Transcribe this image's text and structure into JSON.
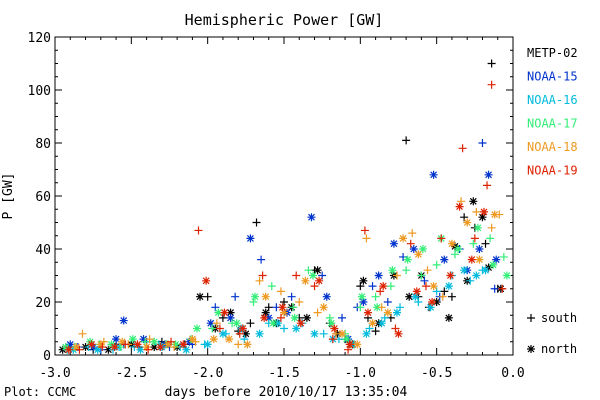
{
  "chart_data": {
    "type": "scatter",
    "title": "Hemispheric Power [GW]",
    "xlabel": "days before 2010/10/17 13:35:04",
    "ylabel": "P [GW]",
    "xlim": [
      -3.0,
      0.0
    ],
    "ylim": [
      0,
      120
    ],
    "x_ticks": [
      "-3.0",
      "-2.5",
      "-2.0",
      "-1.5",
      "-1.0",
      "-0.5",
      "0.0"
    ],
    "y_ticks": [
      "0",
      "20",
      "40",
      "60",
      "80",
      "100",
      "120"
    ],
    "grid": false,
    "legend_position": "right",
    "markers": [
      {
        "symbol": "+",
        "label": "south"
      },
      {
        "symbol": "*",
        "label": "north"
      }
    ],
    "credit": "Plot: CCMC",
    "series": [
      {
        "name": "METP-02",
        "color": "#000000",
        "south": [
          [
            -2.9,
            3
          ],
          [
            -2.75,
            2
          ],
          [
            -2.6,
            4
          ],
          [
            -2.45,
            3
          ],
          [
            -2.3,
            5
          ],
          [
            -2.15,
            4
          ],
          [
            -2.0,
            22
          ],
          [
            -1.9,
            14
          ],
          [
            -1.8,
            9
          ],
          [
            -1.72,
            12
          ],
          [
            -1.68,
            50
          ],
          [
            -1.6,
            18
          ],
          [
            -1.5,
            20
          ],
          [
            -1.4,
            14
          ],
          [
            -1.3,
            32
          ],
          [
            -1.2,
            12
          ],
          [
            -1.1,
            6
          ],
          [
            -1.0,
            26
          ],
          [
            -0.95,
            14
          ],
          [
            -0.9,
            9
          ],
          [
            -0.8,
            14
          ],
          [
            -0.7,
            81
          ],
          [
            -0.62,
            22
          ],
          [
            -0.55,
            18
          ],
          [
            -0.45,
            24
          ],
          [
            -0.4,
            22
          ],
          [
            -0.32,
            52
          ],
          [
            -0.25,
            48
          ],
          [
            -0.18,
            42
          ],
          [
            -0.14,
            110
          ],
          [
            -0.1,
            25
          ]
        ],
        "north": [
          [
            -2.95,
            2
          ],
          [
            -2.8,
            3
          ],
          [
            -2.65,
            2
          ],
          [
            -2.5,
            4
          ],
          [
            -2.35,
            3
          ],
          [
            -2.2,
            3
          ],
          [
            -2.05,
            22
          ],
          [
            -1.95,
            10
          ],
          [
            -1.85,
            16
          ],
          [
            -1.75,
            8
          ],
          [
            -1.62,
            16
          ],
          [
            -1.55,
            12
          ],
          [
            -1.45,
            18
          ],
          [
            -1.35,
            14
          ],
          [
            -1.28,
            32
          ],
          [
            -1.15,
            8
          ],
          [
            -1.05,
            4
          ],
          [
            -0.98,
            28
          ],
          [
            -0.88,
            12
          ],
          [
            -0.78,
            30
          ],
          [
            -0.68,
            22
          ],
          [
            -0.6,
            30
          ],
          [
            -0.5,
            20
          ],
          [
            -0.42,
            14
          ],
          [
            -0.38,
            41
          ],
          [
            -0.3,
            28
          ],
          [
            -0.26,
            58
          ],
          [
            -0.2,
            52
          ],
          [
            -0.16,
            33
          ],
          [
            -0.08,
            25
          ]
        ]
      },
      {
        "name": "NOAA-15",
        "color": "#0033cc",
        "south": [
          [
            -2.85,
            3
          ],
          [
            -2.7,
            2
          ],
          [
            -2.55,
            4
          ],
          [
            -2.4,
            5
          ],
          [
            -2.25,
            3
          ],
          [
            -2.1,
            4
          ],
          [
            -1.95,
            18
          ],
          [
            -1.82,
            22
          ],
          [
            -1.65,
            36
          ],
          [
            -1.55,
            18
          ],
          [
            -1.45,
            22
          ],
          [
            -1.25,
            30
          ],
          [
            -1.12,
            14
          ],
          [
            -1.02,
            18
          ],
          [
            -0.92,
            26
          ],
          [
            -0.82,
            20
          ],
          [
            -0.72,
            37
          ],
          [
            -0.58,
            28
          ],
          [
            -0.48,
            22
          ],
          [
            -0.35,
            40
          ],
          [
            -0.2,
            80
          ],
          [
            -0.12,
            25
          ]
        ],
        "north": [
          [
            -2.9,
            4
          ],
          [
            -2.75,
            3
          ],
          [
            -2.6,
            6
          ],
          [
            -2.55,
            13
          ],
          [
            -2.42,
            6
          ],
          [
            -2.28,
            4
          ],
          [
            -2.12,
            5
          ],
          [
            -1.98,
            12
          ],
          [
            -1.85,
            14
          ],
          [
            -1.72,
            44
          ],
          [
            -1.6,
            14
          ],
          [
            -1.48,
            16
          ],
          [
            -1.32,
            52
          ],
          [
            -1.22,
            22
          ],
          [
            -1.08,
            6
          ],
          [
            -0.98,
            20
          ],
          [
            -0.88,
            30
          ],
          [
            -0.78,
            42
          ],
          [
            -0.65,
            40
          ],
          [
            -0.52,
            68
          ],
          [
            -0.45,
            36
          ],
          [
            -0.3,
            32
          ],
          [
            -0.22,
            40
          ],
          [
            -0.16,
            68
          ],
          [
            -0.11,
            36
          ]
        ]
      },
      {
        "name": "NOAA-16",
        "color": "#00bbdd",
        "south": [
          [
            -2.92,
            2
          ],
          [
            -2.78,
            3
          ],
          [
            -2.62,
            2
          ],
          [
            -2.48,
            3
          ],
          [
            -2.32,
            4
          ],
          [
            -2.18,
            3
          ],
          [
            -2.02,
            4
          ],
          [
            -1.88,
            8
          ],
          [
            -1.76,
            6
          ],
          [
            -1.6,
            12
          ],
          [
            -1.5,
            10
          ],
          [
            -1.38,
            12
          ],
          [
            -1.24,
            8
          ],
          [
            -1.14,
            6
          ],
          [
            -1.04,
            4
          ],
          [
            -0.94,
            10
          ],
          [
            -0.84,
            14
          ],
          [
            -0.74,
            18
          ],
          [
            -0.62,
            20
          ],
          [
            -0.5,
            24
          ],
          [
            -0.4,
            30
          ],
          [
            -0.28,
            28
          ],
          [
            -0.2,
            32
          ]
        ],
        "north": [
          [
            -2.88,
            2
          ],
          [
            -2.72,
            2
          ],
          [
            -2.58,
            3
          ],
          [
            -2.44,
            2
          ],
          [
            -2.3,
            3
          ],
          [
            -2.14,
            2
          ],
          [
            -2.0,
            4
          ],
          [
            -1.9,
            8
          ],
          [
            -1.78,
            10
          ],
          [
            -1.66,
            8
          ],
          [
            -1.54,
            12
          ],
          [
            -1.42,
            10
          ],
          [
            -1.3,
            8
          ],
          [
            -1.18,
            6
          ],
          [
            -1.06,
            4
          ],
          [
            -0.96,
            8
          ],
          [
            -0.86,
            12
          ],
          [
            -0.76,
            16
          ],
          [
            -0.64,
            22
          ],
          [
            -0.54,
            18
          ],
          [
            -0.42,
            26
          ],
          [
            -0.32,
            32
          ],
          [
            -0.24,
            30
          ],
          [
            -0.18,
            32
          ]
        ]
      },
      {
        "name": "NOAA-17",
        "color": "#33ee77",
        "south": [
          [
            -2.87,
            3
          ],
          [
            -2.71,
            4
          ],
          [
            -2.57,
            3
          ],
          [
            -2.41,
            5
          ],
          [
            -2.27,
            4
          ],
          [
            -2.11,
            6
          ],
          [
            -1.97,
            10
          ],
          [
            -1.84,
            12
          ],
          [
            -1.7,
            20
          ],
          [
            -1.58,
            26
          ],
          [
            -1.44,
            18
          ],
          [
            -1.34,
            32
          ],
          [
            -1.2,
            14
          ],
          [
            -1.1,
            8
          ],
          [
            -1.0,
            18
          ],
          [
            -0.9,
            22
          ],
          [
            -0.8,
            26
          ],
          [
            -0.7,
            32
          ],
          [
            -0.6,
            30
          ],
          [
            -0.5,
            34
          ],
          [
            -0.38,
            38
          ],
          [
            -0.26,
            42
          ],
          [
            -0.15,
            44
          ],
          [
            -0.06,
            37
          ]
        ],
        "north": [
          [
            -2.93,
            3
          ],
          [
            -2.77,
            5
          ],
          [
            -2.63,
            4
          ],
          [
            -2.49,
            6
          ],
          [
            -2.35,
            5
          ],
          [
            -2.21,
            4
          ],
          [
            -2.07,
            10
          ],
          [
            -1.93,
            16
          ],
          [
            -1.81,
            12
          ],
          [
            -1.69,
            22
          ],
          [
            -1.57,
            12
          ],
          [
            -1.43,
            14
          ],
          [
            -1.31,
            30
          ],
          [
            -1.19,
            12
          ],
          [
            -1.09,
            6
          ],
          [
            -0.99,
            22
          ],
          [
            -0.89,
            18
          ],
          [
            -0.79,
            32
          ],
          [
            -0.69,
            36
          ],
          [
            -0.59,
            40
          ],
          [
            -0.47,
            44
          ],
          [
            -0.36,
            40
          ],
          [
            -0.23,
            48
          ],
          [
            -0.13,
            34
          ],
          [
            -0.04,
            30
          ]
        ]
      },
      {
        "name": "NOAA-18",
        "color": "#ee9922",
        "south": [
          [
            -2.82,
            8
          ],
          [
            -2.68,
            5
          ],
          [
            -2.52,
            4
          ],
          [
            -2.38,
            6
          ],
          [
            -2.22,
            3
          ],
          [
            -2.08,
            5
          ],
          [
            -1.94,
            12
          ],
          [
            -1.8,
            4
          ],
          [
            -1.66,
            28
          ],
          [
            -1.52,
            24
          ],
          [
            -1.4,
            20
          ],
          [
            -1.28,
            16
          ],
          [
            -1.16,
            8
          ],
          [
            -1.06,
            4
          ],
          [
            -0.96,
            44
          ],
          [
            -0.86,
            18
          ],
          [
            -0.76,
            30
          ],
          [
            -0.66,
            46
          ],
          [
            -0.56,
            32
          ],
          [
            -0.46,
            22
          ],
          [
            -0.34,
            58
          ],
          [
            -0.24,
            54
          ],
          [
            -0.14,
            48
          ],
          [
            -0.09,
            53
          ]
        ],
        "north": [
          [
            -2.86,
            3
          ],
          [
            -2.7,
            4
          ],
          [
            -2.56,
            5
          ],
          [
            -2.4,
            3
          ],
          [
            -2.26,
            4
          ],
          [
            -2.1,
            6
          ],
          [
            -1.96,
            6
          ],
          [
            -1.86,
            6
          ],
          [
            -1.74,
            4
          ],
          [
            -1.62,
            22
          ],
          [
            -1.5,
            16
          ],
          [
            -1.36,
            28
          ],
          [
            -1.24,
            18
          ],
          [
            -1.12,
            8
          ],
          [
            -1.02,
            4
          ],
          [
            -0.92,
            12
          ],
          [
            -0.82,
            16
          ],
          [
            -0.72,
            44
          ],
          [
            -0.62,
            38
          ],
          [
            -0.52,
            26
          ],
          [
            -0.4,
            42
          ],
          [
            -0.3,
            50
          ],
          [
            -0.22,
            36
          ],
          [
            -0.12,
            53
          ]
        ]
      },
      {
        "name": "NOAA-19",
        "color": "#dd2200",
        "south": [
          [
            -2.84,
            2
          ],
          [
            -2.69,
            3
          ],
          [
            -2.54,
            4
          ],
          [
            -2.39,
            2
          ],
          [
            -2.24,
            5
          ],
          [
            -2.06,
            47
          ],
          [
            -1.92,
            10
          ],
          [
            -1.79,
            8
          ],
          [
            -1.64,
            30
          ],
          [
            -1.52,
            14
          ],
          [
            -1.42,
            30
          ],
          [
            -1.3,
            26
          ],
          [
            -1.18,
            6
          ],
          [
            -1.08,
            2
          ],
          [
            -0.97,
            47
          ],
          [
            -0.87,
            24
          ],
          [
            -0.77,
            10
          ],
          [
            -0.67,
            42
          ],
          [
            -0.57,
            26
          ],
          [
            -0.47,
            44
          ],
          [
            -0.33,
            78
          ],
          [
            -0.25,
            44
          ],
          [
            -0.17,
            64
          ],
          [
            -0.14,
            102
          ],
          [
            -0.07,
            25
          ]
        ],
        "north": [
          [
            -2.91,
            2
          ],
          [
            -2.76,
            4
          ],
          [
            -2.61,
            3
          ],
          [
            -2.46,
            4
          ],
          [
            -2.31,
            3
          ],
          [
            -2.16,
            4
          ],
          [
            -2.01,
            28
          ],
          [
            -1.89,
            16
          ],
          [
            -1.77,
            10
          ],
          [
            -1.63,
            14
          ],
          [
            -1.51,
            18
          ],
          [
            -1.39,
            12
          ],
          [
            -1.27,
            28
          ],
          [
            -1.17,
            10
          ],
          [
            -1.07,
            4
          ],
          [
            -0.95,
            16
          ],
          [
            -0.85,
            26
          ],
          [
            -0.75,
            8
          ],
          [
            -0.63,
            24
          ],
          [
            -0.53,
            20
          ],
          [
            -0.41,
            30
          ],
          [
            -0.35,
            56
          ],
          [
            -0.27,
            36
          ],
          [
            -0.19,
            54
          ]
        ]
      }
    ]
  }
}
